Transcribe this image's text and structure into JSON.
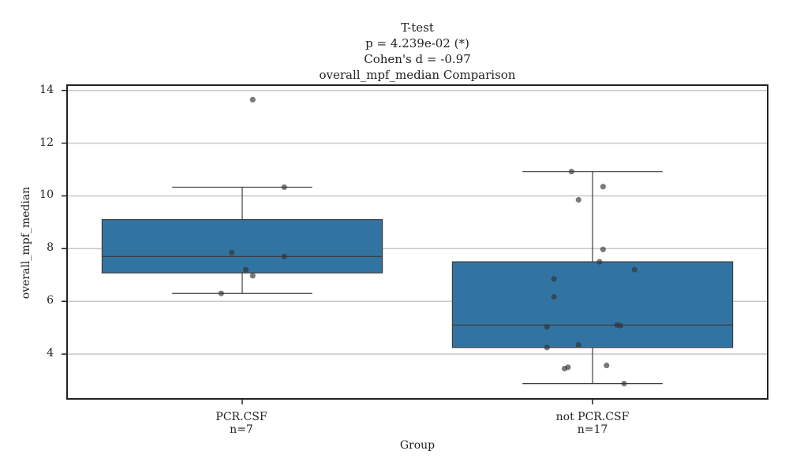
{
  "chart_data": {
    "type": "box",
    "title": [
      "T-test",
      "p = 4.239e-02 (*)",
      "Cohen's d = -0.97",
      "overall_mpf_median Comparison"
    ],
    "xlabel": "Group",
    "ylabel": "overall_mpf_median",
    "ylim": [
      2.3,
      14.2
    ],
    "yticks": [
      4,
      6,
      8,
      10,
      12,
      14
    ],
    "grid": "horizontal",
    "legend": "none",
    "box_color": "#3274a1",
    "edge_color": "#3d3d3d",
    "grid_color": "#c8c8c8",
    "point_color": "#333333",
    "groups": [
      {
        "name": "PCR.CSF",
        "n_label": "n=7",
        "whisker_low": 6.3,
        "q1": 7.08,
        "median": 7.7,
        "q3": 9.1,
        "whisker_high": 10.33,
        "points": [
          {
            "x_offset": 0.03,
            "y": 13.65
          },
          {
            "x_offset": 0.12,
            "y": 10.33
          },
          {
            "x_offset": -0.03,
            "y": 7.85
          },
          {
            "x_offset": 0.12,
            "y": 7.7
          },
          {
            "x_offset": 0.01,
            "y": 7.2
          },
          {
            "x_offset": 0.03,
            "y": 6.97
          },
          {
            "x_offset": -0.06,
            "y": 6.3
          }
        ]
      },
      {
        "name": "not PCR.CSF",
        "n_label": "n=17",
        "whisker_low": 2.88,
        "q1": 4.25,
        "median": 5.1,
        "q3": 7.5,
        "whisker_high": 10.92,
        "points": [
          {
            "x_offset": -0.06,
            "y": 10.92
          },
          {
            "x_offset": 0.03,
            "y": 10.35
          },
          {
            "x_offset": -0.04,
            "y": 9.85
          },
          {
            "x_offset": 0.03,
            "y": 7.97
          },
          {
            "x_offset": 0.02,
            "y": 7.5
          },
          {
            "x_offset": 0.12,
            "y": 7.2
          },
          {
            "x_offset": -0.11,
            "y": 6.85
          },
          {
            "x_offset": -0.11,
            "y": 6.17
          },
          {
            "x_offset": 0.07,
            "y": 5.1
          },
          {
            "x_offset": 0.08,
            "y": 5.08
          },
          {
            "x_offset": -0.13,
            "y": 5.03
          },
          {
            "x_offset": -0.04,
            "y": 4.35
          },
          {
            "x_offset": -0.13,
            "y": 4.25
          },
          {
            "x_offset": 0.04,
            "y": 3.57
          },
          {
            "x_offset": -0.07,
            "y": 3.5
          },
          {
            "x_offset": -0.08,
            "y": 3.45
          },
          {
            "x_offset": 0.09,
            "y": 2.88
          }
        ]
      }
    ]
  }
}
